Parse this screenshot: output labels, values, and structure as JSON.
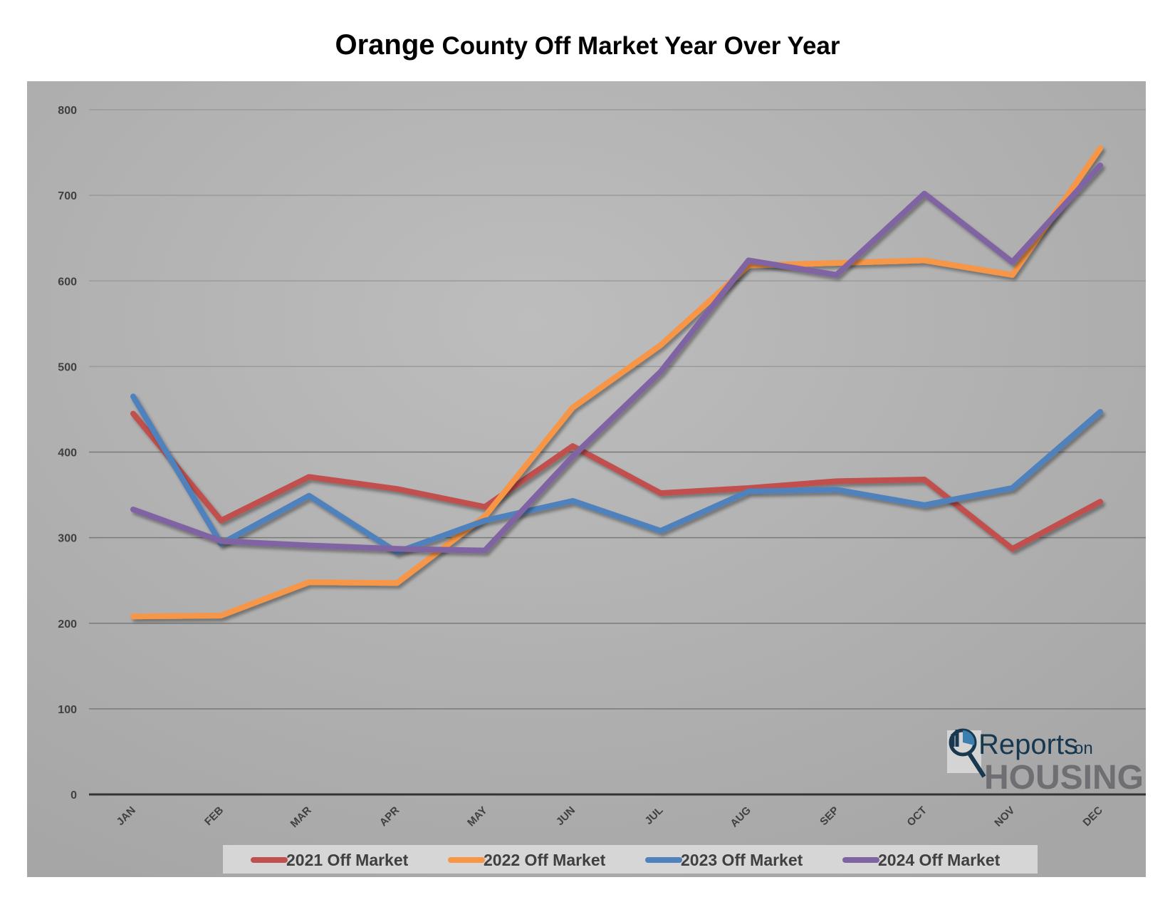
{
  "chart_data": {
    "type": "line",
    "title_big": "Orange",
    "title_rest": "County Off Market Year Over Year",
    "xlabel": "",
    "ylabel": "",
    "ylim": [
      0,
      800
    ],
    "yticks": [
      0,
      100,
      200,
      300,
      400,
      500,
      600,
      700,
      800
    ],
    "ytick_labels": [
      "0",
      "100",
      "200",
      "300",
      "400",
      "500",
      "600",
      "700",
      "800"
    ],
    "grid": true,
    "legend_position": "bottom",
    "categories": [
      "JAN",
      "FEB",
      "MAR",
      "APR",
      "MAY",
      "JUN",
      "JUL",
      "AUG",
      "SEP",
      "OCT",
      "NOV",
      "DEC"
    ],
    "series": [
      {
        "name": "2021 Off Market",
        "color": "#c0504d",
        "values": [
          445,
          320,
          371,
          357,
          336,
          407,
          352,
          358,
          366,
          368,
          287,
          342
        ]
      },
      {
        "name": "2022 Off Market",
        "color": "#f79646",
        "values": [
          208,
          209,
          248,
          247,
          325,
          452,
          525,
          618,
          621,
          624,
          607,
          755
        ]
      },
      {
        "name": "2023 Off Market",
        "color": "#4f81bd",
        "values": [
          465,
          293,
          349,
          283,
          320,
          343,
          308,
          354,
          356,
          338,
          358,
          447
        ]
      },
      {
        "name": "2024 Off Market",
        "color": "#8064a2",
        "values": [
          333,
          296,
          291,
          287,
          285,
          395,
          494,
          624,
          607,
          702,
          622,
          735
        ]
      }
    ]
  },
  "logo": {
    "line1": "Reports",
    "line1b": "on",
    "line2": "HOUSING"
  }
}
